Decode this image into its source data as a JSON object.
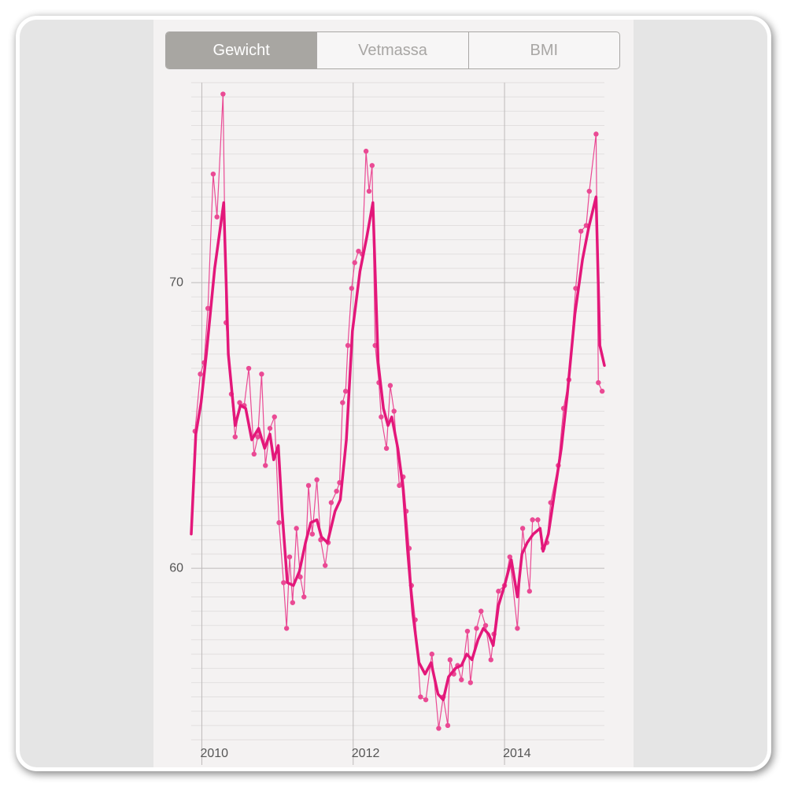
{
  "tabs": [
    "Gewicht",
    "Vetmassa",
    "BMI"
  ],
  "selected_tab": 0,
  "chart_data": {
    "type": "line",
    "xlim": [
      2009.86,
      2015.32
    ],
    "xticks": [
      2010,
      2012,
      2014
    ],
    "ylim": [
      54,
      77
    ],
    "yticks": [
      60,
      70
    ],
    "y_minor_ticks": [
      54,
      54.5,
      55,
      55.5,
      56,
      56.5,
      57,
      57.5,
      58,
      58.5,
      59,
      59.5,
      60.5,
      61,
      61.5,
      62,
      62.5,
      63,
      63.5,
      64,
      64.5,
      65,
      65.5,
      66,
      66.5,
      67,
      67.5,
      68,
      68.5,
      69,
      69.5,
      70.5,
      71,
      71.5,
      72,
      72.5,
      73,
      73.5,
      74,
      74.5,
      75,
      75.5,
      76,
      76.5,
      77
    ],
    "grid": true,
    "series": [
      {
        "color": "#ea4a94",
        "markers": true,
        "width": 1.2,
        "x": [
          2009.91,
          2009.98,
          2010.03,
          2010.08,
          2010.15,
          2010.2,
          2010.28,
          2010.32,
          2010.39,
          2010.44,
          2010.5,
          2010.56,
          2010.62,
          2010.69,
          2010.74,
          2010.79,
          2010.84,
          2010.9,
          2010.96,
          2011.02,
          2011.08,
          2011.12,
          2011.16,
          2011.2,
          2011.25,
          2011.3,
          2011.35,
          2011.41,
          2011.46,
          2011.52,
          2011.57,
          2011.63,
          2011.67,
          2011.71,
          2011.78,
          2011.82,
          2011.86,
          2011.9,
          2011.93,
          2011.98,
          2012.02,
          2012.07,
          2012.12,
          2012.17,
          2012.21,
          2012.25,
          2012.29,
          2012.34,
          2012.37,
          2012.44,
          2012.49,
          2012.54,
          2012.61,
          2012.66,
          2012.7,
          2012.74,
          2012.77,
          2012.82,
          2012.89,
          2012.96,
          2013.04,
          2013.13,
          2013.19,
          2013.25,
          2013.28,
          2013.33,
          2013.38,
          2013.43,
          2013.51,
          2013.55,
          2013.63,
          2013.69,
          2013.75,
          2013.82,
          2013.86,
          2013.92,
          2014.0,
          2014.07,
          2014.17,
          2014.24,
          2014.33,
          2014.37,
          2014.44,
          2014.51,
          2014.56,
          2014.61,
          2014.71,
          2014.78,
          2014.85,
          2014.94,
          2015.01,
          2015.08,
          2015.12,
          2015.21,
          2015.24,
          2015.29
        ],
        "values": [
          64.8,
          66.8,
          67.2,
          69.1,
          73.8,
          72.3,
          76.6,
          68.6,
          66.1,
          64.6,
          65.8,
          65.7,
          67.0,
          64.0,
          64.6,
          66.8,
          63.6,
          64.9,
          65.3,
          61.6,
          59.5,
          57.9,
          60.4,
          58.8,
          61.4,
          59.7,
          59.0,
          62.9,
          61.2,
          63.1,
          61.0,
          60.1,
          60.9,
          62.3,
          62.7,
          63.0,
          65.8,
          66.2,
          67.8,
          69.8,
          70.7,
          71.1,
          71.0,
          74.6,
          73.2,
          74.1,
          67.8,
          66.5,
          65.3,
          64.2,
          66.4,
          65.5,
          62.9,
          63.2,
          62.0,
          60.7,
          59.4,
          58.2,
          55.5,
          55.4,
          57.0,
          54.4,
          55.5,
          54.5,
          56.8,
          56.3,
          56.6,
          56.1,
          57.8,
          56.0,
          57.9,
          58.5,
          58.0,
          56.8,
          57.7,
          59.2,
          59.4,
          60.4,
          57.9,
          61.4,
          59.2,
          61.7,
          61.7,
          60.7,
          60.9,
          62.3,
          63.6,
          65.6,
          66.6,
          69.8,
          71.8,
          72.0,
          73.2,
          75.2,
          66.5,
          66.2
        ]
      },
      {
        "color": "#e3177a",
        "markers": false,
        "width": 3.5,
        "x": [
          2009.86,
          2009.92,
          2009.99,
          2010.06,
          2010.17,
          2010.29,
          2010.35,
          2010.44,
          2010.51,
          2010.58,
          2010.66,
          2010.75,
          2010.83,
          2010.9,
          2010.95,
          2011.01,
          2011.06,
          2011.13,
          2011.21,
          2011.29,
          2011.37,
          2011.44,
          2011.52,
          2011.58,
          2011.66,
          2011.76,
          2011.83,
          2011.91,
          2011.99,
          2012.09,
          2012.18,
          2012.26,
          2012.33,
          2012.4,
          2012.46,
          2012.51,
          2012.59,
          2012.66,
          2012.72,
          2012.79,
          2012.87,
          2012.95,
          2013.03,
          2013.12,
          2013.19,
          2013.26,
          2013.35,
          2013.43,
          2013.5,
          2013.57,
          2013.65,
          2013.72,
          2013.79,
          2013.85,
          2013.92,
          2014.0,
          2014.09,
          2014.17,
          2014.23,
          2014.3,
          2014.38,
          2014.47,
          2014.51,
          2014.58,
          2014.67,
          2014.75,
          2014.83,
          2014.93,
          2015.03,
          2015.11,
          2015.21,
          2015.26,
          2015.32
        ],
        "values": [
          61.2,
          64.7,
          65.8,
          67.5,
          70.5,
          72.8,
          67.5,
          65.0,
          65.7,
          65.6,
          64.5,
          64.9,
          64.2,
          64.7,
          63.8,
          64.3,
          62.0,
          59.5,
          59.4,
          59.9,
          60.9,
          61.6,
          61.7,
          61.1,
          60.9,
          62.0,
          62.4,
          64.5,
          68.3,
          70.4,
          71.6,
          72.8,
          67.2,
          65.6,
          65.0,
          65.3,
          64.2,
          62.8,
          60.6,
          58.4,
          56.7,
          56.3,
          56.7,
          55.6,
          55.4,
          56.2,
          56.5,
          56.6,
          57.0,
          56.8,
          57.5,
          57.9,
          57.7,
          57.3,
          58.7,
          59.4,
          60.3,
          59.0,
          60.5,
          60.9,
          61.2,
          61.4,
          60.6,
          61.2,
          62.8,
          64.2,
          66.1,
          68.9,
          70.8,
          71.9,
          73.0,
          67.8,
          67.1
        ]
      }
    ]
  }
}
